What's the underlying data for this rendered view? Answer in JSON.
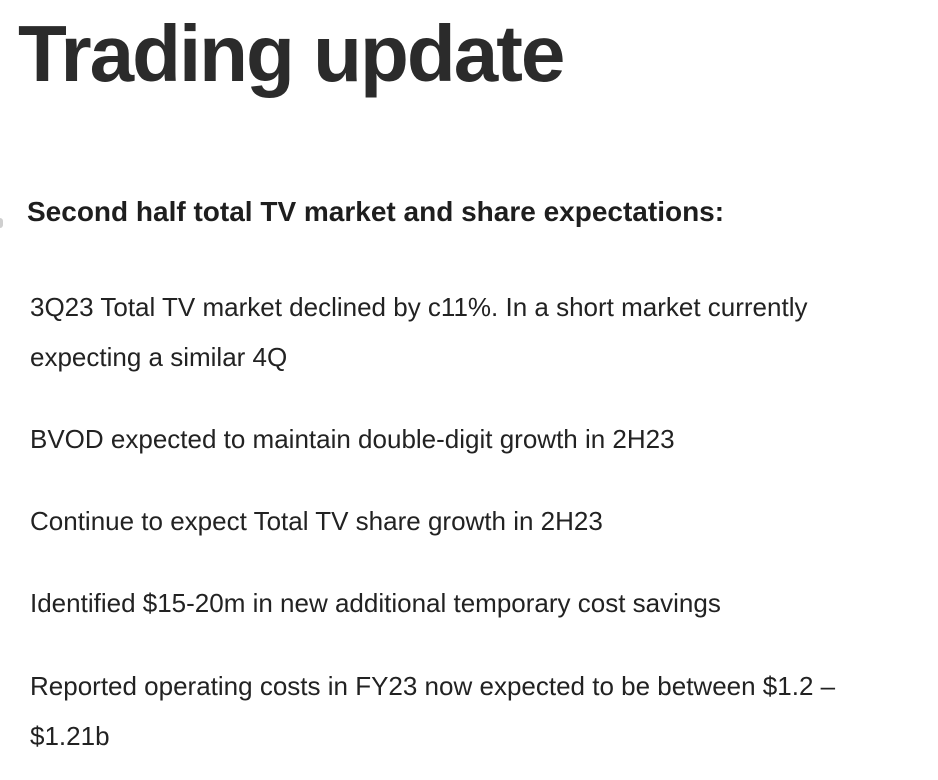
{
  "title": "Trading update",
  "subtitle": "Second half total TV market and share expectations:",
  "bullets": [
    "3Q23 Total TV market declined by c11%.  In a short market currently expecting a similar 4Q",
    "BVOD expected to maintain double-digit growth in 2H23",
    "Continue to expect Total TV share growth in 2H23",
    "Identified $15-20m in new additional temporary cost savings",
    "Reported operating costs in FY23 now expected to be between $1.2 – $1.21b"
  ]
}
